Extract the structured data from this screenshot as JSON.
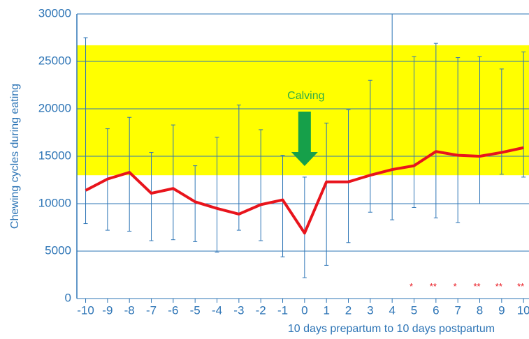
{
  "chart_data": {
    "type": "line",
    "x_label": "10 days prepartum to 10 days postpartum",
    "y_label": "Chewing cycles during eating",
    "x": [
      -10,
      -9,
      -8,
      -7,
      -6,
      -5,
      -4,
      -3,
      -2,
      -1,
      0,
      1,
      2,
      3,
      4,
      5,
      6,
      7,
      8,
      9,
      10
    ],
    "series": [
      {
        "color": "#e8141c",
        "values": [
          11400,
          12600,
          13300,
          11100,
          11600,
          10200,
          9500,
          8900,
          9900,
          10400,
          6900,
          12300,
          12300,
          13000,
          13600,
          14000,
          15500,
          15100,
          15000,
          15400,
          15900
        ],
        "lower": [
          7900,
          7200,
          7100,
          6100,
          6200,
          6000,
          4900,
          7200,
          6100,
          4400,
          2200,
          3500,
          5900,
          9100,
          8300,
          9600,
          8500,
          8000,
          10000,
          13100,
          12800
        ],
        "upper": [
          27500,
          17900,
          19100,
          15400,
          18300,
          14000,
          17000,
          20400,
          17800,
          15100,
          12800,
          18500,
          19900,
          23000,
          30000,
          25500,
          26900,
          25400,
          25500,
          24200,
          26000
        ]
      }
    ],
    "error_color": "#2e75b6",
    "band": {
      "range": [
        13000,
        26700
      ],
      "color": "#ffff00"
    },
    "xlim": [
      -10.4,
      10.25
    ],
    "ylim": [
      0,
      30000
    ],
    "yticks": [
      0,
      5000,
      10000,
      15000,
      20000,
      25000,
      30000
    ],
    "grid": true,
    "event": {
      "x": 0,
      "label": "Calving"
    },
    "significance": [
      {
        "x": 5,
        "label": "*"
      },
      {
        "x": 6,
        "label": "**"
      },
      {
        "x": 7,
        "label": "*"
      },
      {
        "x": 8,
        "label": "**"
      },
      {
        "x": 9,
        "label": "**"
      },
      {
        "x": 10,
        "label": "**"
      }
    ],
    "significance_level": 1200
  }
}
